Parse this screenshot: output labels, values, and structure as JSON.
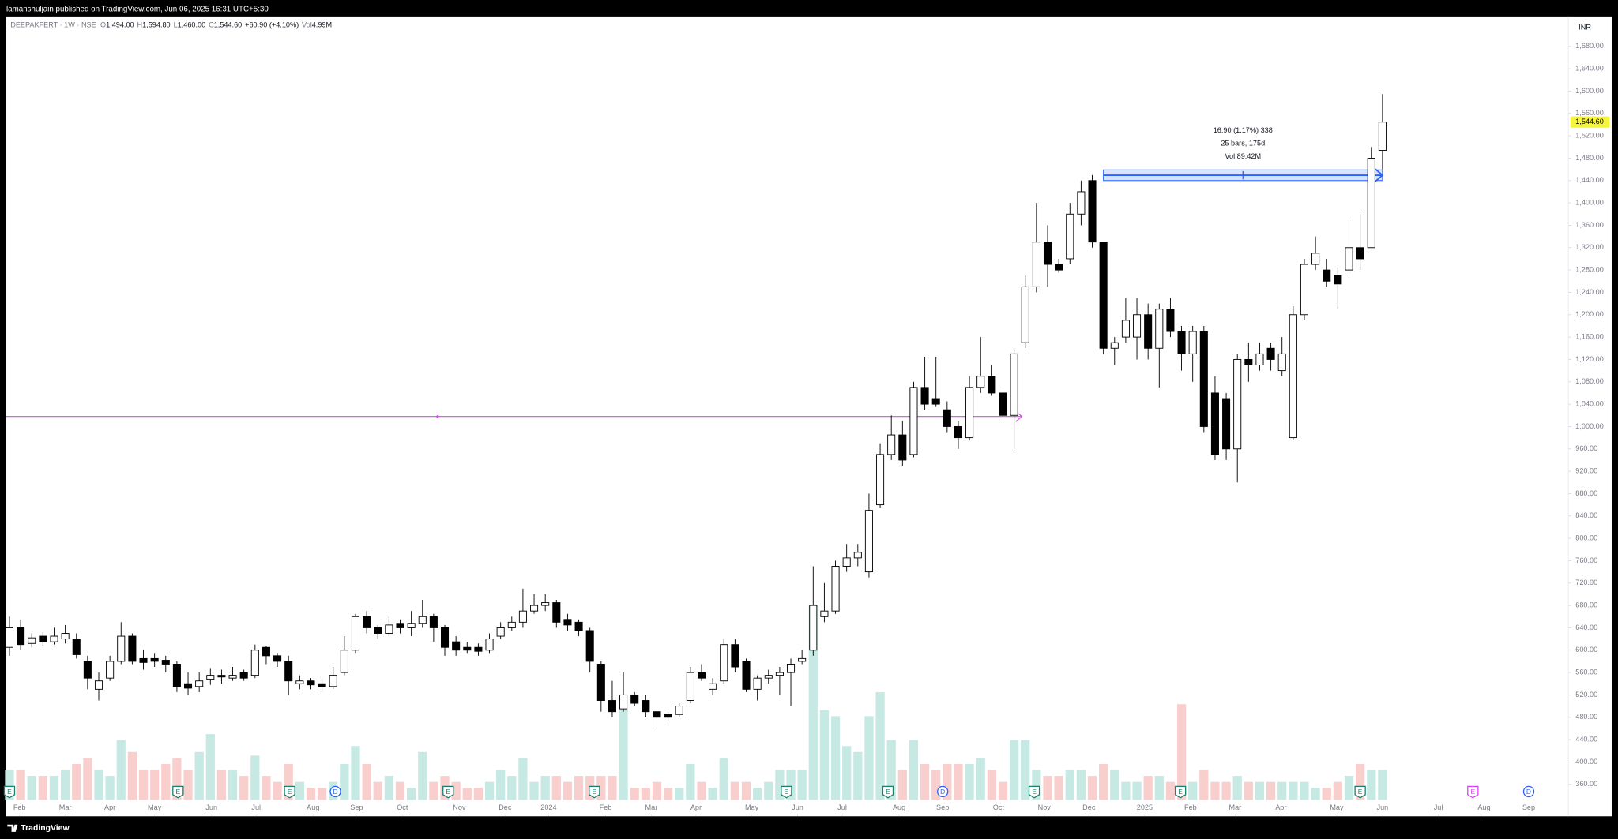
{
  "top_bar": "lamanshuljain published on TradingView.com, Jun 06, 2025 16:31 UTC+5:30",
  "footer": "TradingView",
  "chart_data": {
    "type": "candlestick",
    "legend": [
      "DEEPAKFERT · 1W · NSE",
      "O",
      "1,494.00",
      "H",
      "1,594.80",
      "L",
      "1,460.00",
      "C",
      "1,544.60",
      "+60.90 (+4.10%)",
      "Vol",
      "4.99M"
    ],
    "currency": "INR",
    "last_price_label": "1,544.60",
    "up_color": "#ffffff",
    "down_color": "#000000",
    "volume_up_color": "#c6e9e4",
    "volume_down_color": "#f9cfce",
    "grid": false,
    "open": [
      605,
      640,
      612,
      625,
      615,
      620,
      620,
      580,
      530,
      550,
      580,
      625,
      585,
      585,
      582,
      575,
      540,
      535,
      548,
      555,
      550,
      560,
      555,
      605,
      590,
      580,
      540,
      545,
      540,
      535,
      560,
      600,
      660,
      640,
      630,
      648,
      640,
      648,
      660,
      640,
      615,
      605,
      605,
      600,
      625,
      640,
      650,
      670,
      680,
      685,
      655,
      650,
      635,
      575,
      510,
      495,
      520,
      510,
      490,
      485,
      485,
      510,
      560,
      530,
      545,
      610,
      580,
      530,
      550,
      555,
      560,
      580,
      600,
      660,
      670,
      750,
      765,
      740,
      860,
      950,
      985,
      950,
      1070,
      1050,
      1030,
      1000,
      980,
      1070,
      1090,
      1060,
      1020,
      1150,
      1250,
      1330,
      1290,
      1300,
      1380,
      1440,
      1330,
      1140,
      1160,
      1160,
      1200,
      1140,
      1210,
      1170,
      1130,
      1170,
      1060,
      1050,
      960,
      1120,
      1110,
      1140,
      1100,
      980,
      1200,
      1290,
      1280,
      1270,
      1280,
      1320,
      1320,
      1494
    ],
    "high": [
      660,
      655,
      630,
      632,
      640,
      645,
      630,
      590,
      560,
      590,
      650,
      630,
      600,
      595,
      590,
      580,
      560,
      560,
      568,
      565,
      570,
      565,
      610,
      608,
      595,
      590,
      555,
      550,
      550,
      570,
      625,
      665,
      670,
      645,
      660,
      655,
      670,
      690,
      665,
      645,
      625,
      615,
      612,
      630,
      650,
      660,
      710,
      700,
      700,
      690,
      665,
      655,
      640,
      580,
      545,
      560,
      525,
      520,
      495,
      490,
      505,
      570,
      575,
      550,
      620,
      620,
      585,
      555,
      565,
      570,
      585,
      600,
      750,
      720,
      760,
      790,
      790,
      880,
      970,
      1020,
      1010,
      1080,
      1125,
      1125,
      1045,
      1010,
      1090,
      1160,
      1110,
      1065,
      1140,
      1270,
      1400,
      1360,
      1300,
      1400,
      1440,
      1450,
      1330,
      1160,
      1230,
      1230,
      1220,
      1220,
      1230,
      1180,
      1180,
      1180,
      1090,
      1060,
      1130,
      1150,
      1150,
      1150,
      1160,
      1215,
      1300,
      1340,
      1300,
      1285,
      1370,
      1380,
      1500,
      1594.8
    ],
    "low": [
      590,
      600,
      605,
      608,
      610,
      612,
      585,
      530,
      510,
      545,
      575,
      575,
      565,
      570,
      560,
      525,
      520,
      525,
      538,
      540,
      545,
      545,
      550,
      575,
      570,
      520,
      530,
      530,
      525,
      530,
      555,
      595,
      630,
      620,
      625,
      630,
      625,
      640,
      615,
      590,
      590,
      595,
      590,
      595,
      620,
      635,
      640,
      665,
      670,
      640,
      635,
      625,
      560,
      490,
      480,
      490,
      500,
      480,
      455,
      475,
      480,
      505,
      545,
      520,
      540,
      560,
      525,
      510,
      540,
      520,
      500,
      575,
      590,
      650,
      665,
      740,
      750,
      730,
      855,
      940,
      930,
      945,
      1030,
      1035,
      990,
      960,
      975,
      1060,
      1055,
      1010,
      960,
      1140,
      1240,
      1250,
      1275,
      1290,
      1360,
      1320,
      1130,
      1110,
      1150,
      1120,
      1120,
      1070,
      1160,
      1100,
      1080,
      990,
      940,
      940,
      900,
      1080,
      1100,
      1100,
      1090,
      975,
      1190,
      1280,
      1250,
      1210,
      1270,
      1280,
      1320,
      1460
    ],
    "close": [
      640,
      610,
      622,
      615,
      625,
      630,
      592,
      550,
      545,
      580,
      625,
      580,
      578,
      580,
      575,
      535,
      532,
      545,
      555,
      552,
      555,
      550,
      600,
      590,
      580,
      545,
      545,
      538,
      535,
      555,
      600,
      660,
      640,
      630,
      645,
      640,
      648,
      660,
      640,
      605,
      600,
      600,
      598,
      620,
      640,
      650,
      670,
      680,
      685,
      650,
      645,
      635,
      580,
      510,
      490,
      520,
      505,
      490,
      480,
      480,
      500,
      560,
      550,
      540,
      610,
      570,
      530,
      550,
      555,
      560,
      575,
      585,
      680,
      670,
      750,
      765,
      775,
      850,
      950,
      985,
      940,
      1070,
      1040,
      1040,
      1000,
      980,
      1070,
      1090,
      1060,
      1020,
      1130,
      1250,
      1330,
      1290,
      1280,
      1380,
      1420,
      1330,
      1140,
      1150,
      1190,
      1200,
      1140,
      1210,
      1170,
      1130,
      1170,
      1000,
      950,
      960,
      1120,
      1110,
      1130,
      1120,
      1130,
      1200,
      1290,
      1310,
      1260,
      1255,
      1320,
      1300,
      1480,
      1544.6
    ],
    "volume": [
      5,
      5,
      4,
      4,
      4,
      5,
      6,
      7,
      5,
      4,
      10,
      8,
      5,
      5,
      6,
      7,
      5,
      8,
      11,
      5,
      5,
      4,
      7.4,
      4,
      3,
      6,
      3,
      2,
      2,
      3,
      6,
      9,
      6,
      3,
      4,
      3,
      2,
      8,
      3,
      4,
      3,
      2,
      2,
      3,
      5,
      4,
      7,
      3,
      4,
      4,
      3,
      4,
      4,
      4,
      4,
      15,
      2,
      2,
      3,
      2,
      2,
      6,
      3,
      2,
      7,
      3,
      3,
      2,
      3,
      5,
      5,
      5,
      32.6,
      15,
      14,
      9,
      8,
      14,
      18,
      10,
      5,
      10,
      6,
      5,
      6,
      6,
      6,
      7,
      5,
      3,
      10,
      10,
      5,
      4,
      4,
      5,
      5,
      4,
      6,
      5,
      3,
      3,
      4,
      4,
      3,
      16,
      3,
      5,
      3,
      3,
      4,
      3,
      3,
      3,
      3,
      3,
      3,
      2,
      2,
      3,
      4,
      6,
      5,
      4.99
    ],
    "xlim": [
      -0.28,
      139.65
    ],
    "xticks": [
      {
        "value": 0.9,
        "label": "Feb"
      },
      {
        "value": 5,
        "label": "Mar"
      },
      {
        "value": 9,
        "label": "Apr"
      },
      {
        "value": 13,
        "label": "May"
      },
      {
        "value": 18.1,
        "label": "Jun"
      },
      {
        "value": 22.1,
        "label": "Jul"
      },
      {
        "value": 27.2,
        "label": "Aug"
      },
      {
        "value": 31.1,
        "label": "Sep"
      },
      {
        "value": 35.2,
        "label": "Oct"
      },
      {
        "value": 40.3,
        "label": "Nov"
      },
      {
        "value": 44.4,
        "label": "Dec"
      },
      {
        "value": 48.3,
        "label": "2024"
      },
      {
        "value": 53.4,
        "label": "Feb"
      },
      {
        "value": 57.5,
        "label": "Mar"
      },
      {
        "value": 61.5,
        "label": "Apr"
      },
      {
        "value": 66.5,
        "label": "May"
      },
      {
        "value": 70.6,
        "label": "Jun"
      },
      {
        "value": 74.6,
        "label": "Jul"
      },
      {
        "value": 79.7,
        "label": "Aug"
      },
      {
        "value": 83.6,
        "label": "Sep"
      },
      {
        "value": 88.6,
        "label": "Oct"
      },
      {
        "value": 92.7,
        "label": "Nov"
      },
      {
        "value": 96.7,
        "label": "Dec"
      },
      {
        "value": 101.7,
        "label": "2025"
      },
      {
        "value": 105.8,
        "label": "Feb"
      },
      {
        "value": 109.8,
        "label": "Mar"
      },
      {
        "value": 113.9,
        "label": "Apr"
      },
      {
        "value": 118.9,
        "label": "May"
      },
      {
        "value": 123,
        "label": "Jun"
      },
      {
        "value": 128,
        "label": "Jul"
      },
      {
        "value": 132.1,
        "label": "Aug"
      },
      {
        "value": 136.1,
        "label": "Sep"
      }
    ],
    "ylim": [
      302.8,
      1733.5
    ],
    "yticks": [
      {
        "value": 360,
        "label": "360.00"
      },
      {
        "value": 400,
        "label": "400.00"
      },
      {
        "value": 440,
        "label": "440.00"
      },
      {
        "value": 480,
        "label": "480.00"
      },
      {
        "value": 520,
        "label": "520.00"
      },
      {
        "value": 560,
        "label": "560.00"
      },
      {
        "value": 600,
        "label": "600.00"
      },
      {
        "value": 640,
        "label": "640.00"
      },
      {
        "value": 680,
        "label": "680.00"
      },
      {
        "value": 720,
        "label": "720.00"
      },
      {
        "value": 760,
        "label": "760.00"
      },
      {
        "value": 800,
        "label": "800.00"
      },
      {
        "value": 840,
        "label": "840.00"
      },
      {
        "value": 880,
        "label": "880.00"
      },
      {
        "value": 920,
        "label": "920.00"
      },
      {
        "value": 960,
        "label": "960.00"
      },
      {
        "value": 1000,
        "label": "1,000.00"
      },
      {
        "value": 1040,
        "label": "1,040.00"
      },
      {
        "value": 1080,
        "label": "1,080.00"
      },
      {
        "value": 1120,
        "label": "1,120.00"
      },
      {
        "value": 1160,
        "label": "1,160.00"
      },
      {
        "value": 1200,
        "label": "1,200.00"
      },
      {
        "value": 1240,
        "label": "1,240.00"
      },
      {
        "value": 1280,
        "label": "1,280.00"
      },
      {
        "value": 1320,
        "label": "1,320.00"
      },
      {
        "value": 1360,
        "label": "1,360.00"
      },
      {
        "value": 1400,
        "label": "1,400.00"
      },
      {
        "value": 1440,
        "label": "1,440.00"
      },
      {
        "value": 1480,
        "label": "1,480.00"
      },
      {
        "value": 1520,
        "label": "1,520.00"
      },
      {
        "value": 1560,
        "label": "1,560.00"
      },
      {
        "value": 1600,
        "label": "1,600.00"
      },
      {
        "value": 1640,
        "label": "1,640.00"
      },
      {
        "value": 1680,
        "label": "1,680.00"
      }
    ],
    "hline": {
      "value": 1018,
      "x_end": 90.7,
      "color": "#e040fb"
    },
    "measure": {
      "lines": [
        "16.90 (1.17%) 338",
        "25 bars, 175d",
        "Vol 89.42M"
      ],
      "x": [
        98,
        123
      ],
      "y": [
        1440,
        1459
      ],
      "color": "#2962ff"
    },
    "events": [
      {
        "label": "E",
        "x": 0,
        "color": "#1b7f6b"
      },
      {
        "label": "E",
        "x": 15.1,
        "color": "#1b7f6b"
      },
      {
        "label": "E",
        "x": 25.1,
        "color": "#1b7f6b"
      },
      {
        "label": "D",
        "x": 29.2,
        "color": "#2962ff"
      },
      {
        "label": "E",
        "x": 39.3,
        "color": "#1b7f6b"
      },
      {
        "label": "E",
        "x": 52.4,
        "color": "#1b7f6b"
      },
      {
        "label": "E",
        "x": 69.6,
        "color": "#1b7f6b"
      },
      {
        "label": "E",
        "x": 78.7,
        "color": "#1b7f6b"
      },
      {
        "label": "D",
        "x": 83.6,
        "color": "#2962ff"
      },
      {
        "label": "E",
        "x": 91.8,
        "color": "#1b7f6b"
      },
      {
        "label": "E",
        "x": 104.9,
        "color": "#1b7f6b"
      },
      {
        "label": "E",
        "x": 121,
        "color": "#1b7f6b"
      },
      {
        "label": "E",
        "x": 131.1,
        "color": "#e040fb"
      },
      {
        "label": "D",
        "x": 136.1,
        "color": "#2962ff"
      }
    ]
  }
}
